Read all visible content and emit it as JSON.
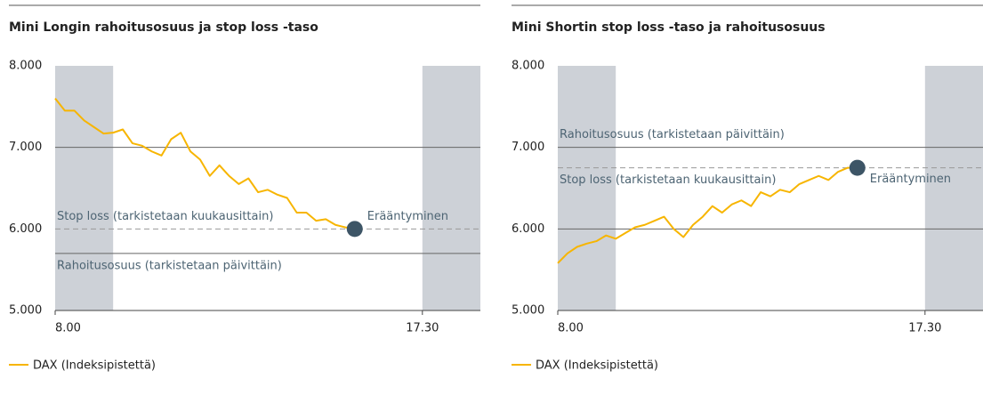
{
  "chart_data": [
    {
      "type": "line",
      "title": "Mini Longin rahoitusosuus ja stop loss -taso",
      "x": [
        8.0,
        8.25,
        8.5,
        8.75,
        9.0,
        9.25,
        9.5,
        9.75,
        10.0,
        10.25,
        10.5,
        10.75,
        11.0,
        11.25,
        11.5,
        11.75,
        12.0,
        12.25,
        12.5,
        12.75,
        13.0,
        13.25,
        13.5,
        13.75,
        14.0,
        14.25,
        14.5,
        14.75,
        15.0,
        15.25,
        15.5,
        15.75
      ],
      "series": [
        {
          "name": "DAX (Indeksipistettä)",
          "color": "#f7b500",
          "values": [
            7600,
            7450,
            7450,
            7330,
            7250,
            7170,
            7180,
            7220,
            7050,
            7020,
            6950,
            6900,
            7100,
            7180,
            6950,
            6850,
            6650,
            6780,
            6650,
            6550,
            6620,
            6450,
            6480,
            6420,
            6380,
            6200,
            6200,
            6100,
            6120,
            6050,
            6020,
            6000
          ]
        }
      ],
      "xlim": [
        8,
        19
      ],
      "xticks": [
        {
          "value": 8,
          "label": "8.00"
        },
        {
          "value": 17.5,
          "label": "17.30"
        }
      ],
      "ylim": [
        5000,
        8000
      ],
      "yticks": [
        {
          "value": 5000,
          "label": "5.000"
        },
        {
          "value": 6000,
          "label": "6.000"
        },
        {
          "value": 7000,
          "label": "7.000"
        },
        {
          "value": 8000,
          "label": "8.000"
        }
      ],
      "grid": true,
      "bands": [
        [
          8,
          9.5
        ],
        [
          17.5,
          19
        ]
      ],
      "reference_lines": [
        {
          "value": 6000,
          "label": "Stop loss (tarkistetaan kuukausittain)",
          "style": "dashed",
          "label_position": "above"
        },
        {
          "value": 5700,
          "label": "Rahoitusosuus (tarkistetaan päivittäin)",
          "style": "solid",
          "label_position": "below"
        }
      ],
      "end_marker": {
        "x": 15.75,
        "y": 6000,
        "label": "Erääntyminen",
        "label_position": "above",
        "color": "#3d5566"
      },
      "legend": "bottom-left"
    },
    {
      "type": "line",
      "title": "Mini Shortin stop loss -taso ja rahoitusosuus",
      "x": [
        8.0,
        8.25,
        8.5,
        8.75,
        9.0,
        9.25,
        9.5,
        9.75,
        10.0,
        10.25,
        10.5,
        10.75,
        11.0,
        11.25,
        11.5,
        11.75,
        12.0,
        12.25,
        12.5,
        12.75,
        13.0,
        13.25,
        13.5,
        13.75,
        14.0,
        14.25,
        14.5,
        14.75,
        15.0,
        15.25,
        15.5,
        15.75
      ],
      "series": [
        {
          "name": "DAX (Indeksipistettä)",
          "color": "#f7b500",
          "values": [
            5580,
            5700,
            5780,
            5820,
            5850,
            5920,
            5880,
            5950,
            6020,
            6050,
            6100,
            6150,
            6000,
            5900,
            6050,
            6150,
            6280,
            6200,
            6300,
            6350,
            6280,
            6450,
            6400,
            6480,
            6450,
            6550,
            6600,
            6650,
            6600,
            6700,
            6750,
            6750
          ]
        }
      ],
      "xlim": [
        8,
        19
      ],
      "xticks": [
        {
          "value": 8,
          "label": "8.00"
        },
        {
          "value": 17.5,
          "label": "17.30"
        }
      ],
      "ylim": [
        5000,
        8000
      ],
      "yticks": [
        {
          "value": 5000,
          "label": "5.000"
        },
        {
          "value": 6000,
          "label": "6.000"
        },
        {
          "value": 7000,
          "label": "7.000"
        },
        {
          "value": 8000,
          "label": "8.000"
        }
      ],
      "grid": true,
      "bands": [
        [
          8,
          9.5
        ],
        [
          17.5,
          19
        ]
      ],
      "reference_lines": [
        {
          "value": 7000,
          "label": "Rahoitusosuus (tarkistetaan päivittäin)",
          "style": "solid",
          "label_position": "above"
        },
        {
          "value": 6750,
          "label": "Stop loss (tarkistetaan kuukausittain)",
          "style": "dashed",
          "label_position": "below"
        }
      ],
      "end_marker": {
        "x": 15.75,
        "y": 6750,
        "label": "Erääntyminen",
        "label_position": "below",
        "color": "#3d5566"
      },
      "legend": "bottom-left"
    }
  ]
}
